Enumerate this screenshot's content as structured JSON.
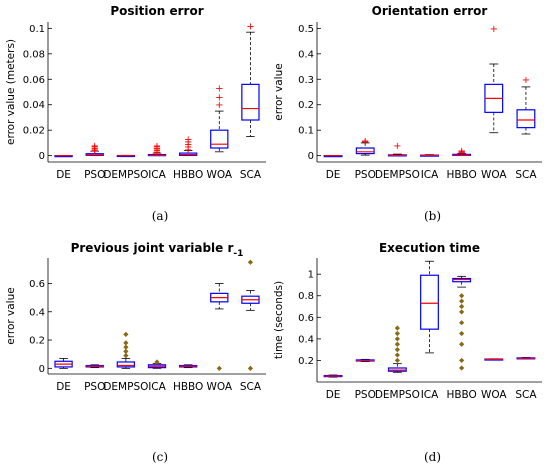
{
  "chart_data": [
    {
      "type": "boxplot",
      "title": "Position error",
      "ylabel": "error value (meters)",
      "caption": "(a)",
      "ylim": [
        -0.005,
        0.105
      ],
      "yticks": [
        0,
        0.02,
        0.04,
        0.06,
        0.08,
        0.1
      ],
      "ytick_labels": [
        "0",
        "0.02",
        "0.04",
        "0.06",
        "0.08",
        "0.1"
      ],
      "categories": [
        "DE",
        "PSO",
        "DEMPSO",
        "ICA",
        "HBBO",
        "WOA",
        "SCA"
      ],
      "boxes": [
        {
          "min": 0,
          "q1": 0,
          "median": 0,
          "q3": 0,
          "max": 0,
          "outliers": []
        },
        {
          "min": 0,
          "q1": 0.0002,
          "median": 0.0006,
          "q3": 0.0015,
          "max": 0.0035,
          "outliers": [
            0.004,
            0.005,
            0.006,
            0.007,
            0.008
          ]
        },
        {
          "min": 0,
          "q1": 0,
          "median": 0,
          "q3": 0.0001,
          "max": 0.0002,
          "outliers": []
        },
        {
          "min": 0,
          "q1": 0,
          "median": 0.0002,
          "q3": 0.0008,
          "max": 0.002,
          "outliers": [
            0.003,
            0.004,
            0.005,
            0.006,
            0.007,
            0.008
          ]
        },
        {
          "min": 0,
          "q1": 0.0002,
          "median": 0.0008,
          "q3": 0.002,
          "max": 0.004,
          "outliers": [
            0.005,
            0.007,
            0.009,
            0.011,
            0.013
          ]
        },
        {
          "min": 0.003,
          "q1": 0.006,
          "median": 0.009,
          "q3": 0.02,
          "max": 0.035,
          "outliers": [
            0.04,
            0.046,
            0.053
          ]
        },
        {
          "min": 0.015,
          "q1": 0.028,
          "median": 0.037,
          "q3": 0.056,
          "max": 0.097,
          "outliers": [
            0.102
          ]
        }
      ]
    },
    {
      "type": "boxplot",
      "title": "Orientation error",
      "ylabel": "error value",
      "caption": "(b)",
      "ylim": [
        -0.025,
        0.525
      ],
      "yticks": [
        0,
        0.1,
        0.2,
        0.3,
        0.4,
        0.5
      ],
      "ytick_labels": [
        "0",
        "0.1",
        "0.2",
        "0.3",
        "0.4",
        "0.5"
      ],
      "categories": [
        "DE",
        "PSO",
        "DEMPSO",
        "ICA",
        "HBBO",
        "WOA",
        "SCA"
      ],
      "boxes": [
        {
          "min": 0,
          "q1": 0,
          "median": 0,
          "q3": 0,
          "max": 0,
          "outliers": []
        },
        {
          "min": 0.002,
          "q1": 0.008,
          "median": 0.015,
          "q3": 0.03,
          "max": 0.05,
          "outliers": [
            0.055,
            0.06
          ]
        },
        {
          "min": 0,
          "q1": 0,
          "median": 0.001,
          "q3": 0.003,
          "max": 0.006,
          "outliers": [
            0.04
          ]
        },
        {
          "min": 0,
          "q1": 0,
          "median": 0.001,
          "q3": 0.002,
          "max": 0.004,
          "outliers": []
        },
        {
          "min": 0,
          "q1": 0.001,
          "median": 0.002,
          "q3": 0.005,
          "max": 0.008,
          "outliers": [
            0.012,
            0.016,
            0.02
          ]
        },
        {
          "min": 0.09,
          "q1": 0.17,
          "median": 0.225,
          "q3": 0.28,
          "max": 0.36,
          "outliers": [
            0.5
          ]
        },
        {
          "min": 0.085,
          "q1": 0.11,
          "median": 0.14,
          "q3": 0.18,
          "max": 0.27,
          "outliers": [
            0.3
          ]
        }
      ]
    },
    {
      "type": "boxplot",
      "title": "Previous joint variable r",
      "title_sub": "-1",
      "ylabel": "error value",
      "caption": "(c)",
      "ylim": [
        -0.04,
        0.78
      ],
      "yticks": [
        0,
        0.2,
        0.4,
        0.6
      ],
      "ytick_labels": [
        "0",
        "0.2",
        "0.4",
        "0.6"
      ],
      "categories": [
        "DE",
        "PSO",
        "DEMPSO",
        "ICA",
        "HBBO",
        "WOA",
        "SCA"
      ],
      "boxes": [
        {
          "min": 0,
          "q1": 0.01,
          "median": 0.03,
          "q3": 0.05,
          "max": 0.07,
          "outliers": []
        },
        {
          "min": 0.005,
          "q1": 0.01,
          "median": 0.015,
          "q3": 0.02,
          "max": 0.025,
          "outliers": []
        },
        {
          "min": 0,
          "q1": 0.01,
          "median": 0.02,
          "q3": 0.045,
          "max": 0.07,
          "outliers": [
            0.09,
            0.12,
            0.15,
            0.18,
            0.24
          ]
        },
        {
          "min": 0,
          "q1": 0.005,
          "median": 0.015,
          "q3": 0.025,
          "max": 0.035,
          "outliers": [
            0.045
          ]
        },
        {
          "min": 0.005,
          "q1": 0.01,
          "median": 0.015,
          "q3": 0.02,
          "max": 0.025,
          "outliers": []
        },
        {
          "min": 0.42,
          "q1": 0.47,
          "median": 0.5,
          "q3": 0.53,
          "max": 0.6,
          "outliers": [
            0
          ]
        },
        {
          "min": 0.41,
          "q1": 0.46,
          "median": 0.485,
          "q3": 0.51,
          "max": 0.55,
          "outliers": [
            0,
            0.75
          ]
        }
      ]
    },
    {
      "type": "boxplot",
      "title": "Execution time",
      "ylabel": "time (seconds)",
      "caption": "(d)",
      "ylim": [
        0,
        1.15
      ],
      "yticks": [
        0.2,
        0.4,
        0.6,
        0.8,
        1
      ],
      "ytick_labels": [
        "0.2",
        "0.4",
        "0.6",
        "0.8",
        "1"
      ],
      "categories": [
        "DE",
        "PSO",
        "DEMPSO",
        "ICA",
        "HBBO",
        "WOA",
        "SCA"
      ],
      "boxes": [
        {
          "min": 0.045,
          "q1": 0.05,
          "median": 0.055,
          "q3": 0.06,
          "max": 0.065,
          "outliers": []
        },
        {
          "min": 0.19,
          "q1": 0.195,
          "median": 0.2,
          "q3": 0.205,
          "max": 0.21,
          "outliers": []
        },
        {
          "min": 0.09,
          "q1": 0.1,
          "median": 0.11,
          "q3": 0.13,
          "max": 0.17,
          "outliers": [
            0.2,
            0.25,
            0.3,
            0.35,
            0.4,
            0.45,
            0.5
          ]
        },
        {
          "min": 0.27,
          "q1": 0.49,
          "median": 0.73,
          "q3": 0.99,
          "max": 1.12,
          "outliers": []
        },
        {
          "min": 0.88,
          "q1": 0.93,
          "median": 0.95,
          "q3": 0.96,
          "max": 0.98,
          "outliers": [
            0.13,
            0.2,
            0.35,
            0.45,
            0.55,
            0.65,
            0.7,
            0.75,
            0.8
          ]
        },
        {
          "min": 0.205,
          "q1": 0.208,
          "median": 0.21,
          "q3": 0.213,
          "max": 0.215,
          "outliers": []
        },
        {
          "min": 0.215,
          "q1": 0.218,
          "median": 0.22,
          "q3": 0.224,
          "max": 0.228,
          "outliers": []
        }
      ]
    }
  ],
  "colors": {
    "box": "#0000ff",
    "median": "#ff0000",
    "outlier_red": "#ff0000",
    "outlier_olive": "#8b6914",
    "axis": "#000000"
  }
}
